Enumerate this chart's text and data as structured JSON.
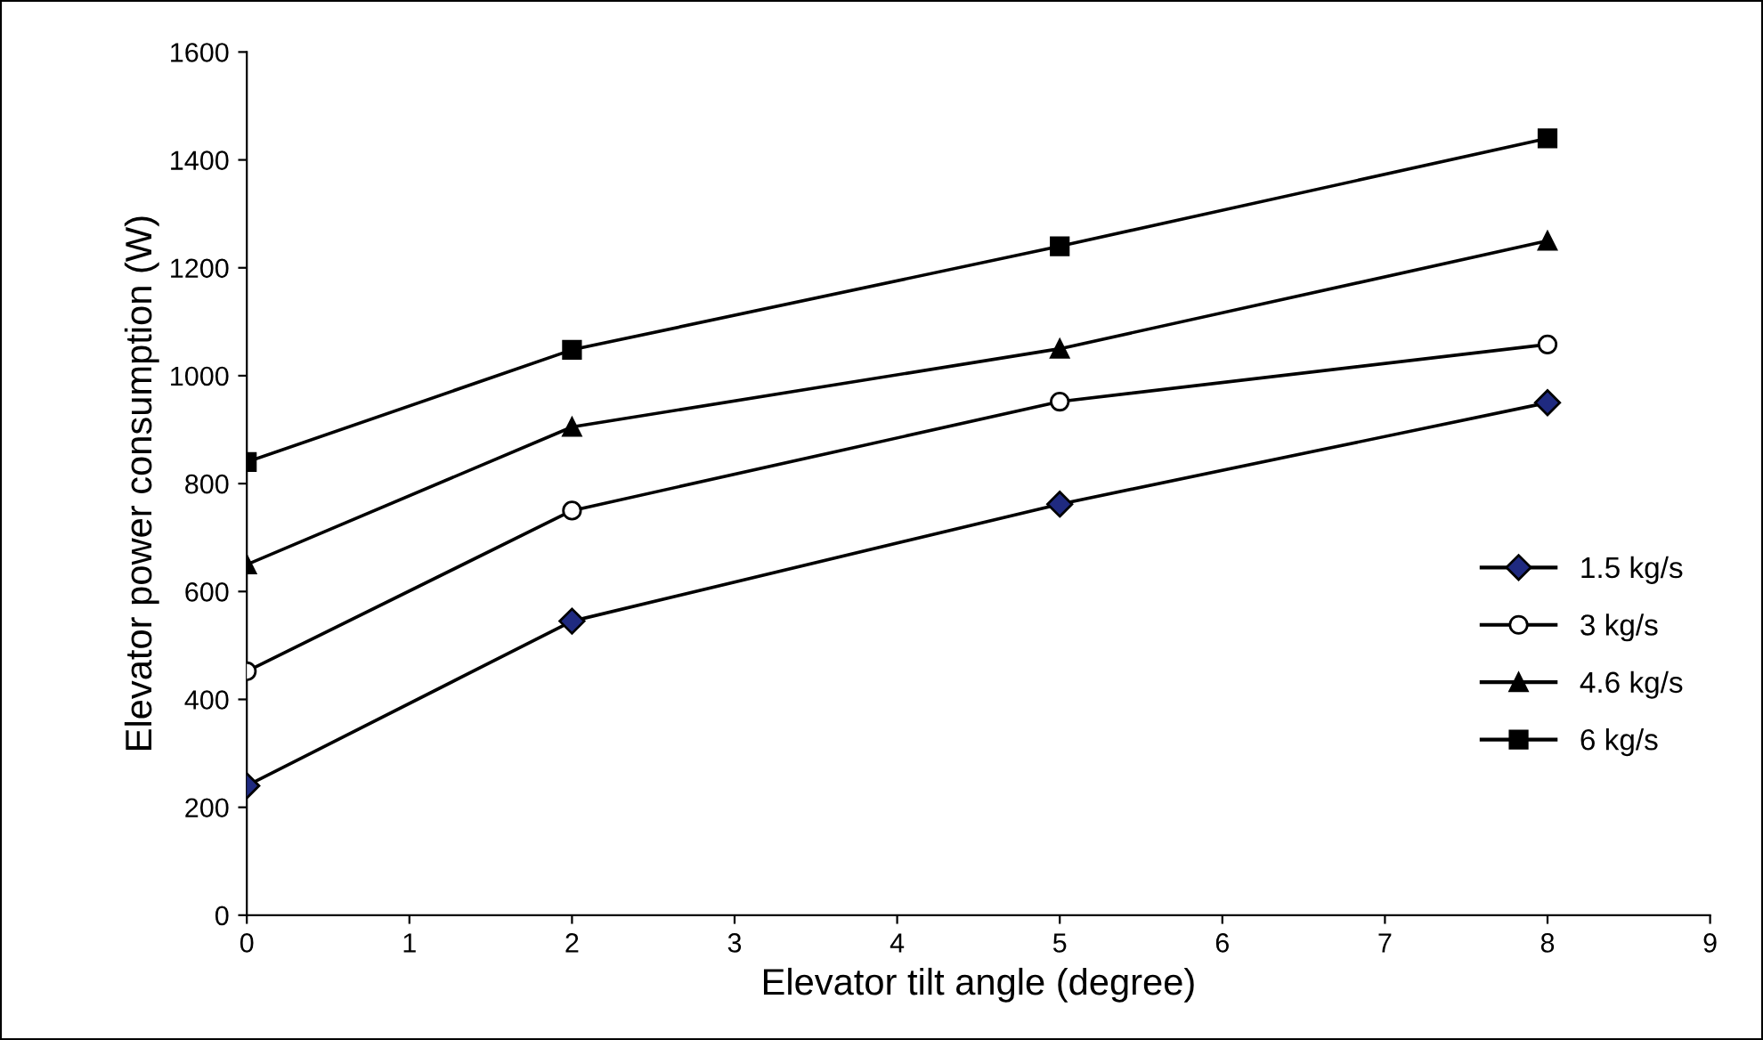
{
  "chart_data": {
    "type": "line",
    "xlabel": "Elevator tilt angle (degree)",
    "ylabel": "Elevator power consumption (W)",
    "x": [
      0,
      2,
      5,
      8
    ],
    "series": [
      {
        "name": "1.5 kg/s",
        "color": "#1f2a80",
        "marker": "diamond",
        "values": [
          240,
          545,
          762,
          950
        ]
      },
      {
        "name": "3 kg/s",
        "color": "#ffffff",
        "marker": "circle",
        "values": [
          452,
          750,
          952,
          1058
        ]
      },
      {
        "name": "4.6 kg/s",
        "color": "#000000",
        "marker": "triangle",
        "values": [
          650,
          905,
          1050,
          1250
        ]
      },
      {
        "name": "6 kg/s",
        "color": "#000000",
        "marker": "square",
        "values": [
          840,
          1048,
          1240,
          1440
        ]
      }
    ],
    "xlim": [
      0,
      9
    ],
    "xticks": [
      0,
      1,
      2,
      3,
      4,
      5,
      6,
      7,
      8,
      9
    ],
    "ylim": [
      0,
      1600
    ],
    "yticks": [
      0,
      200,
      400,
      600,
      800,
      1000,
      1200,
      1400,
      1600
    ],
    "grid": false,
    "legend": "right",
    "line_style": "solid"
  }
}
